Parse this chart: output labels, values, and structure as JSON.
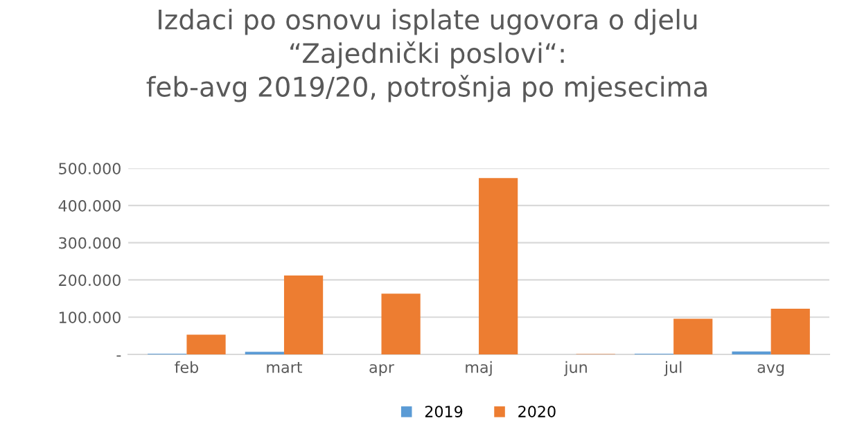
{
  "chart_data": {
    "type": "bar",
    "title": "Izdaci po osnovu isplate ugovora o djelu\n“Zajednički poslovi“:\nfeb-avg 2019/20, potrošnja po mjesecima",
    "categories": [
      "feb",
      "mart",
      "apr",
      "maj",
      "jun",
      "jul",
      "avg"
    ],
    "series": [
      {
        "name": "2019",
        "color": "#5b9bd5",
        "values": [
          2000,
          7000,
          0,
          0,
          0,
          2000,
          8000
        ]
      },
      {
        "name": "2020",
        "color": "#ed7d31",
        "values": [
          53000,
          212000,
          163000,
          474000,
          1000,
          96000,
          123000
        ]
      }
    ],
    "ylim": [
      0,
      500000
    ],
    "yticks": [
      {
        "value": 0,
        "label": "-"
      },
      {
        "value": 100000,
        "label": "100.000"
      },
      {
        "value": 200000,
        "label": "200.000"
      },
      {
        "value": 300000,
        "label": "300.000"
      },
      {
        "value": 400000,
        "label": "400.000"
      },
      {
        "value": 500000,
        "label": "500.000"
      }
    ],
    "grid": "y",
    "legend": "bottom"
  }
}
